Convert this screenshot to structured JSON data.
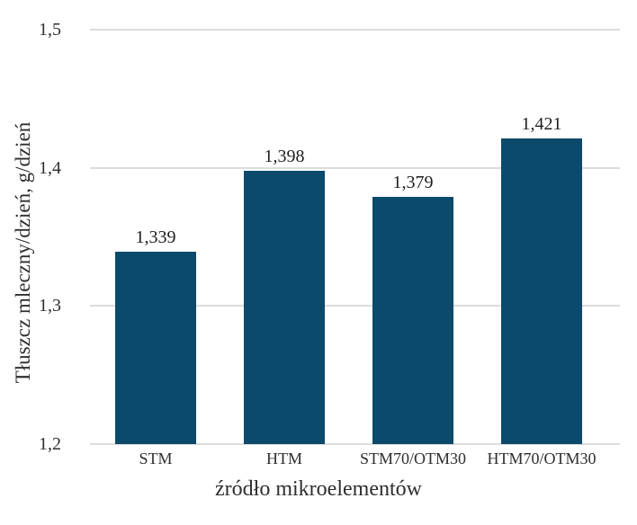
{
  "chart_data": {
    "type": "bar",
    "title": "",
    "xlabel": "źródło mikroelementów",
    "ylabel": "Tłuszcz mleczny/dzień, g/dzień",
    "categories": [
      "STM",
      "HTM",
      "STM70/OTM30",
      "HTM70/OTM30"
    ],
    "values": [
      1.339,
      1.398,
      1.379,
      1.421
    ],
    "value_labels": [
      "1,339",
      "1,398",
      "1,379",
      "1,421"
    ],
    "ylim": [
      1.2,
      1.5
    ],
    "y_ticks": [
      {
        "value": 1.2,
        "label": "1,2"
      },
      {
        "value": 1.3,
        "label": "1,3"
      },
      {
        "value": 1.4,
        "label": "1,4"
      },
      {
        "value": 1.5,
        "label": "1,5"
      }
    ],
    "grid": true,
    "legend": "none",
    "colors": {
      "bar": "#0c4a6c",
      "gridline": "#dcdcdc",
      "text": "#2e2e2e",
      "background": "#ffffff"
    }
  }
}
